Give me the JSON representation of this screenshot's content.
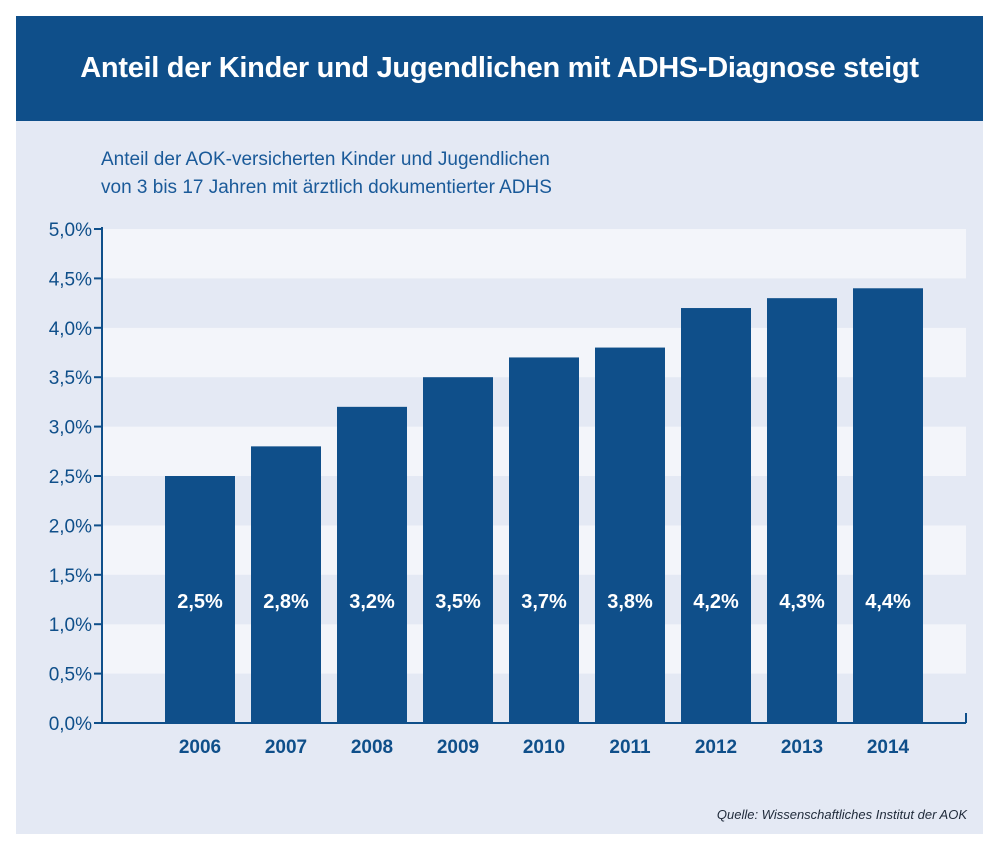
{
  "header": {
    "title": "Anteil der Kinder und Jugendlichen mit ADHS-Diagnose steigt"
  },
  "subtitle": {
    "line1": "Anteil der AOK-versicherten Kinder und Jugendlichen",
    "line2": "von 3 bis 17 Jahren mit ärztlich dokumentierter ADHS"
  },
  "source": "Quelle: Wissenschaftliches Institut der AOK",
  "colors": {
    "bar": "#0f4f8a",
    "axis": "#0f4f8a",
    "band_light": "#f3f5fa",
    "band_dark": "#e4e9f4"
  },
  "chart_data": {
    "type": "bar",
    "title": "Anteil der Kinder und Jugendlichen mit ADHS-Diagnose steigt",
    "xlabel": "",
    "ylabel": "",
    "categories": [
      "2006",
      "2007",
      "2008",
      "2009",
      "2010",
      "2011",
      "2012",
      "2013",
      "2014"
    ],
    "values": [
      2.5,
      2.8,
      3.2,
      3.5,
      3.7,
      3.8,
      4.2,
      4.3,
      4.4
    ],
    "value_labels": [
      "2,5%",
      "2,8%",
      "3,2%",
      "3,5%",
      "3,7%",
      "3,8%",
      "4,2%",
      "4,3%",
      "4,4%"
    ],
    "ylim": [
      0,
      5
    ],
    "yticks": [
      0,
      0.5,
      1,
      1.5,
      2,
      2.5,
      3,
      3.5,
      4,
      4.5,
      5
    ],
    "ytick_labels": [
      "0,0%",
      "0,5%",
      "1,0%",
      "1,5%",
      "2,0%",
      "2,5%",
      "3,0%",
      "3,5%",
      "4,0%",
      "4,5%",
      "5,0%"
    ]
  }
}
